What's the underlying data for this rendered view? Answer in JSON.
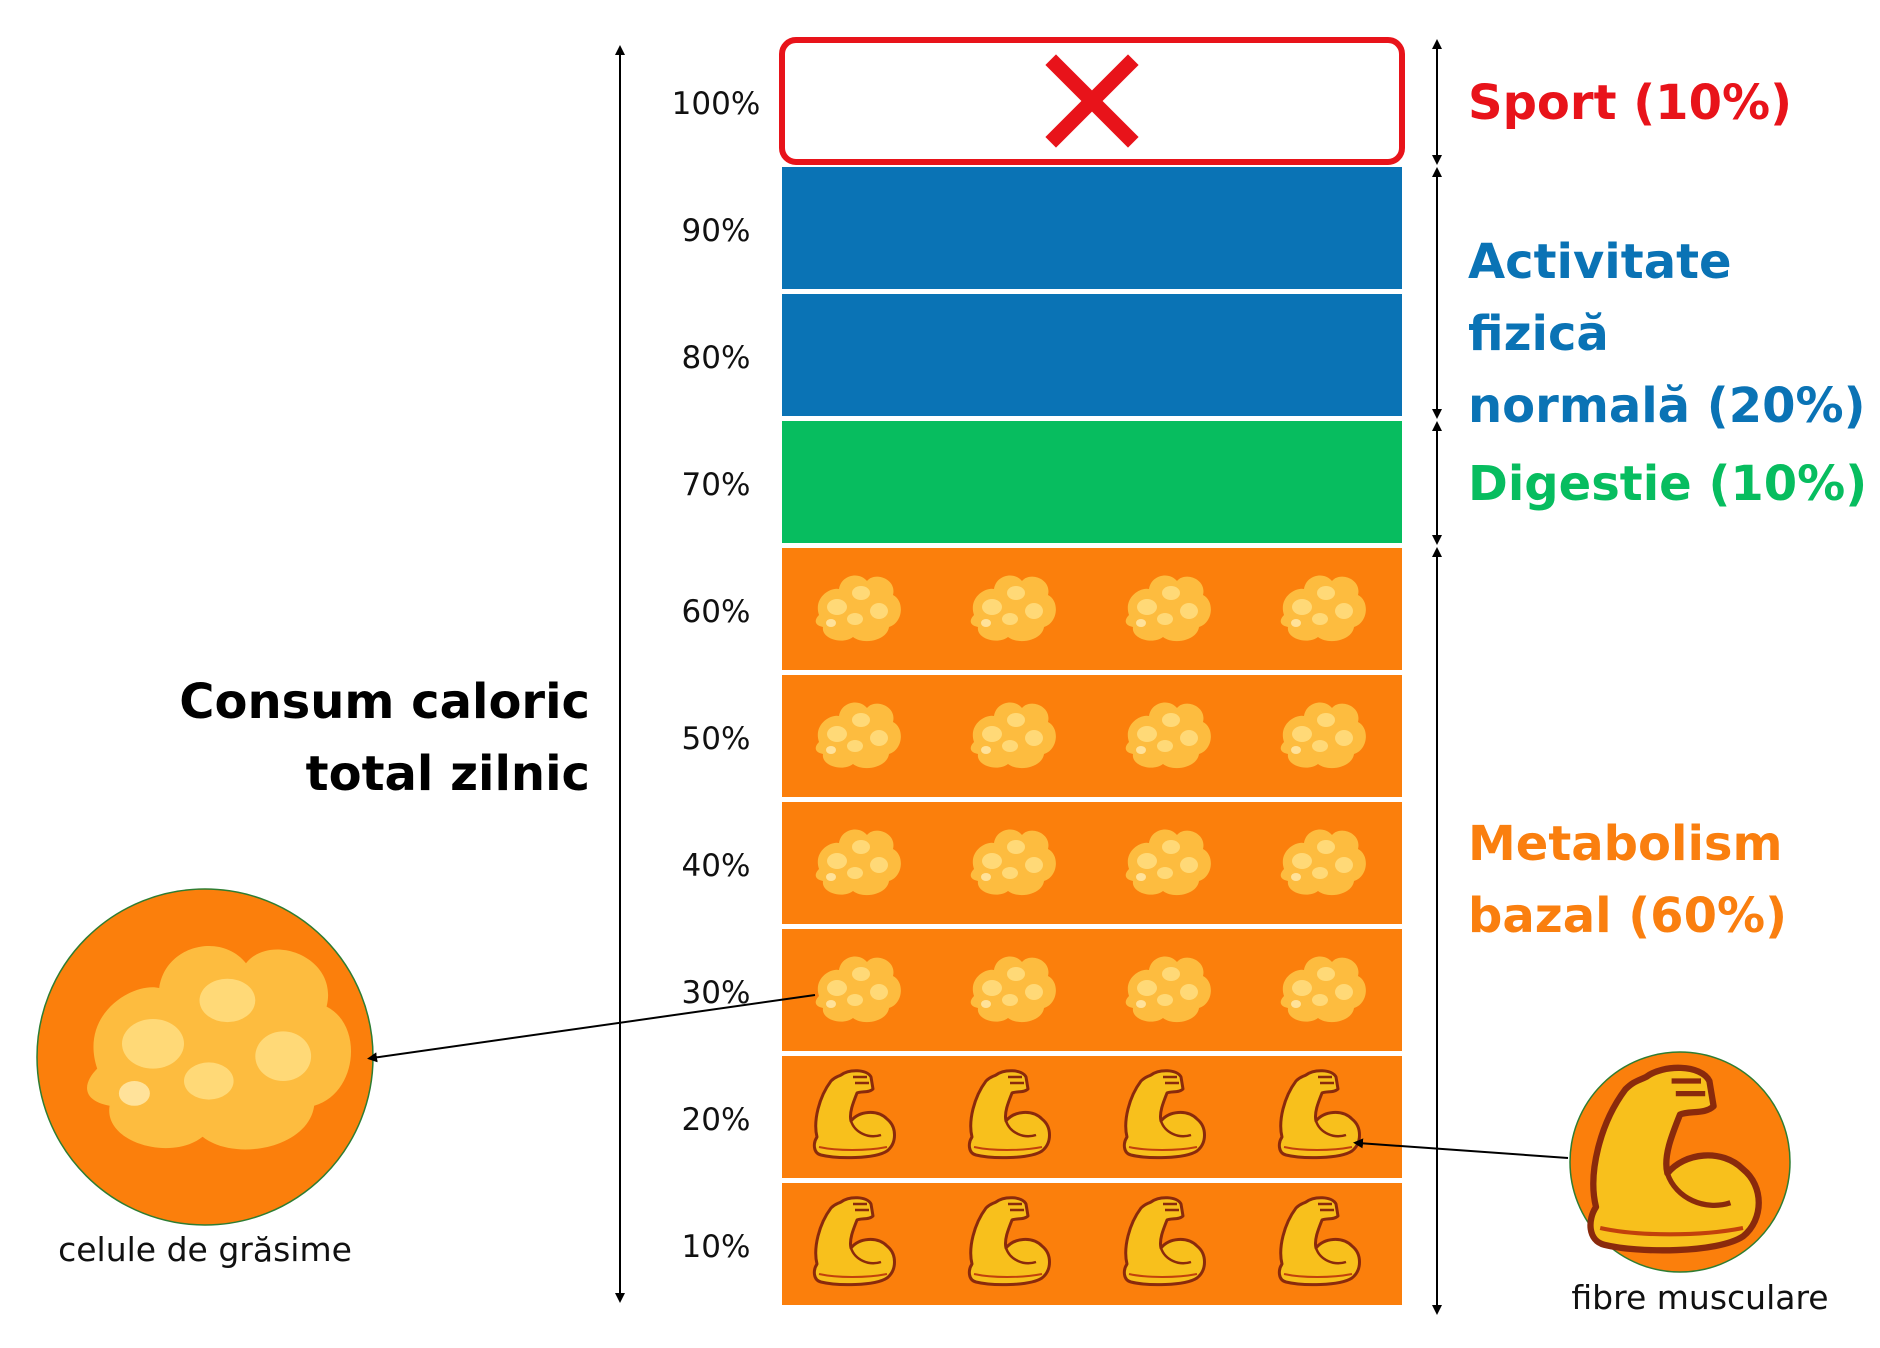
{
  "title_lines": [
    "Consum caloric",
    "total zilnic"
  ],
  "percent_labels": [
    "100%",
    "90%",
    "80%",
    "70%",
    "60%",
    "50%",
    "40%",
    "30%",
    "20%",
    "10%"
  ],
  "categories": [
    {
      "label": "Sport (10%)",
      "color": "#e8131a",
      "share": 10
    },
    {
      "label_lines": [
        "Activitate fizică",
        "normală (20%)"
      ],
      "color": "#0a73b5",
      "share": 20
    },
    {
      "label": "Digestie (10%)",
      "color": "#07bd5f",
      "share": 10
    },
    {
      "label_lines": [
        "Metabolism",
        "bazal (60%)"
      ],
      "color": "#fa7f0f",
      "share": 60
    }
  ],
  "segment_colors": {
    "sport": "#ffffff",
    "sport_border": "#e8131a",
    "activity": "#0a73b5",
    "digestion": "#07bd5f",
    "basal": "#fb7f0c"
  },
  "icons": {
    "sport_segment": "red-x-icon",
    "fat_rows": "fat-cell-icon",
    "muscle_rows": "flexed-arm-icon"
  },
  "captions": {
    "fat": "celule de grăsime",
    "muscle": "fibre musculare"
  }
}
